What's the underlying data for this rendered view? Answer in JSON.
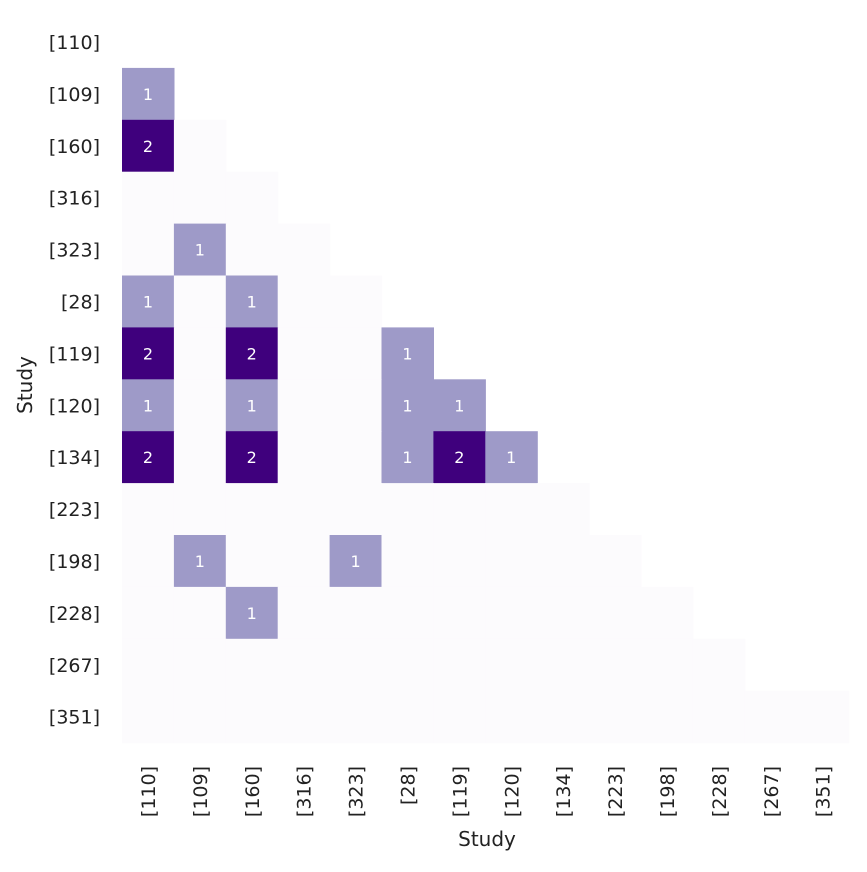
{
  "chart_data": {
    "type": "heatmap",
    "title": "",
    "xlabel": "Study",
    "ylabel": "Study",
    "studies": [
      "[110]",
      "[109]",
      "[160]",
      "[316]",
      "[323]",
      "[28]",
      "[119]",
      "[120]",
      "[134]",
      "[223]",
      "[198]",
      "[228]",
      "[267]",
      "[351]"
    ],
    "matrix": [
      [
        null,
        null,
        null,
        null,
        null,
        null,
        null,
        null,
        null,
        null,
        null,
        null,
        null,
        null
      ],
      [
        1,
        null,
        null,
        null,
        null,
        null,
        null,
        null,
        null,
        null,
        null,
        null,
        null,
        null
      ],
      [
        2,
        0,
        null,
        null,
        null,
        null,
        null,
        null,
        null,
        null,
        null,
        null,
        null,
        null
      ],
      [
        0,
        0,
        0,
        null,
        null,
        null,
        null,
        null,
        null,
        null,
        null,
        null,
        null,
        null
      ],
      [
        0,
        1,
        0,
        0,
        null,
        null,
        null,
        null,
        null,
        null,
        null,
        null,
        null,
        null
      ],
      [
        1,
        0,
        1,
        0,
        0,
        null,
        null,
        null,
        null,
        null,
        null,
        null,
        null,
        null
      ],
      [
        2,
        0,
        2,
        0,
        0,
        1,
        null,
        null,
        null,
        null,
        null,
        null,
        null,
        null
      ],
      [
        1,
        0,
        1,
        0,
        0,
        1,
        1,
        null,
        null,
        null,
        null,
        null,
        null,
        null
      ],
      [
        2,
        0,
        2,
        0,
        0,
        1,
        2,
        1,
        null,
        null,
        null,
        null,
        null,
        null
      ],
      [
        0,
        0,
        0,
        0,
        0,
        0,
        0,
        0,
        0,
        null,
        null,
        null,
        null,
        null
      ],
      [
        0,
        1,
        0,
        0,
        1,
        0,
        0,
        0,
        0,
        0,
        null,
        null,
        null,
        null
      ],
      [
        0,
        0,
        1,
        0,
        0,
        0,
        0,
        0,
        0,
        0,
        0,
        null,
        null,
        null
      ],
      [
        0,
        0,
        0,
        0,
        0,
        0,
        0,
        0,
        0,
        0,
        0,
        0,
        null,
        null
      ],
      [
        0,
        0,
        0,
        0,
        0,
        0,
        0,
        0,
        0,
        0,
        0,
        0,
        0,
        0
      ]
    ],
    "value_range": [
      0,
      2
    ],
    "annotate_zero": false,
    "grid": false,
    "legend": "none",
    "colors": {
      "0": "#fcfbfd",
      "1": "#9e9ac8",
      "2": "#3f007d",
      "text_on_light": "#222222",
      "text_on_dark": "#ffffff"
    }
  }
}
